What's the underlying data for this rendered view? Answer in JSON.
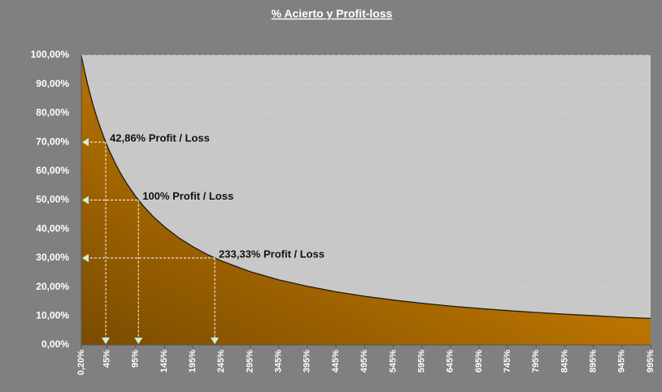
{
  "chart_data": {
    "type": "area",
    "title": "% Acierto y Profit-loss",
    "x": [
      0.2,
      5,
      10,
      15,
      20,
      25,
      30,
      35,
      40,
      45,
      50,
      60,
      70,
      80,
      95,
      110,
      125,
      145,
      170,
      195,
      220,
      245,
      295,
      345,
      395,
      445,
      495,
      545,
      595,
      645,
      695,
      745,
      795,
      845,
      895,
      945,
      995
    ],
    "values": [
      99.8,
      95.24,
      90.91,
      86.96,
      83.33,
      80.0,
      76.92,
      74.07,
      71.43,
      68.97,
      66.67,
      62.5,
      58.82,
      55.56,
      51.28,
      47.62,
      44.44,
      40.82,
      37.04,
      33.9,
      31.25,
      28.99,
      25.32,
      22.47,
      20.25,
      18.35,
      16.81,
      15.5,
      14.39,
      13.42,
      12.59,
      11.85,
      11.2,
      10.62,
      10.1,
      9.57,
      9.13
    ],
    "color": "#c87a00",
    "xlim": [
      0.2,
      995
    ],
    "xticks": [
      {
        "value": 0.2,
        "label": "0,20%"
      },
      {
        "value": 45,
        "label": "45%"
      },
      {
        "value": 95,
        "label": "95%"
      },
      {
        "value": 145,
        "label": "145%"
      },
      {
        "value": 195,
        "label": "195%"
      },
      {
        "value": 245,
        "label": "245%"
      },
      {
        "value": 295,
        "label": "295%"
      },
      {
        "value": 345,
        "label": "345%"
      },
      {
        "value": 395,
        "label": "395%"
      },
      {
        "value": 445,
        "label": "445%"
      },
      {
        "value": 495,
        "label": "495%"
      },
      {
        "value": 545,
        "label": "545%"
      },
      {
        "value": 595,
        "label": "595%"
      },
      {
        "value": 645,
        "label": "645%"
      },
      {
        "value": 695,
        "label": "695%"
      },
      {
        "value": 745,
        "label": "745%"
      },
      {
        "value": 795,
        "label": "795%"
      },
      {
        "value": 845,
        "label": "845%"
      },
      {
        "value": 895,
        "label": "895%"
      },
      {
        "value": 945,
        "label": "945%"
      },
      {
        "value": 995,
        "label": "995%"
      }
    ],
    "ylim": [
      0,
      100
    ],
    "yticks": [
      {
        "value": 0,
        "label": "0,00%"
      },
      {
        "value": 10,
        "label": "10,00%"
      },
      {
        "value": 20,
        "label": "20,00%"
      },
      {
        "value": 30,
        "label": "30,00%"
      },
      {
        "value": 40,
        "label": "40,00%"
      },
      {
        "value": 50,
        "label": "50,00%"
      },
      {
        "value": 60,
        "label": "60,00%"
      },
      {
        "value": 70,
        "label": "70,00%"
      },
      {
        "value": 80,
        "label": "80,00%"
      },
      {
        "value": 90,
        "label": "90,00%"
      },
      {
        "value": 100,
        "label": "100,00%"
      }
    ],
    "grid": true,
    "annotations": [
      {
        "text": "42,86% Profit / Loss",
        "x": 42.86,
        "y": 70
      },
      {
        "text": "100% Profit / Loss",
        "x": 100,
        "y": 50
      },
      {
        "text": "233,33% Profit / Loss",
        "x": 233.33,
        "y": 30
      }
    ]
  }
}
